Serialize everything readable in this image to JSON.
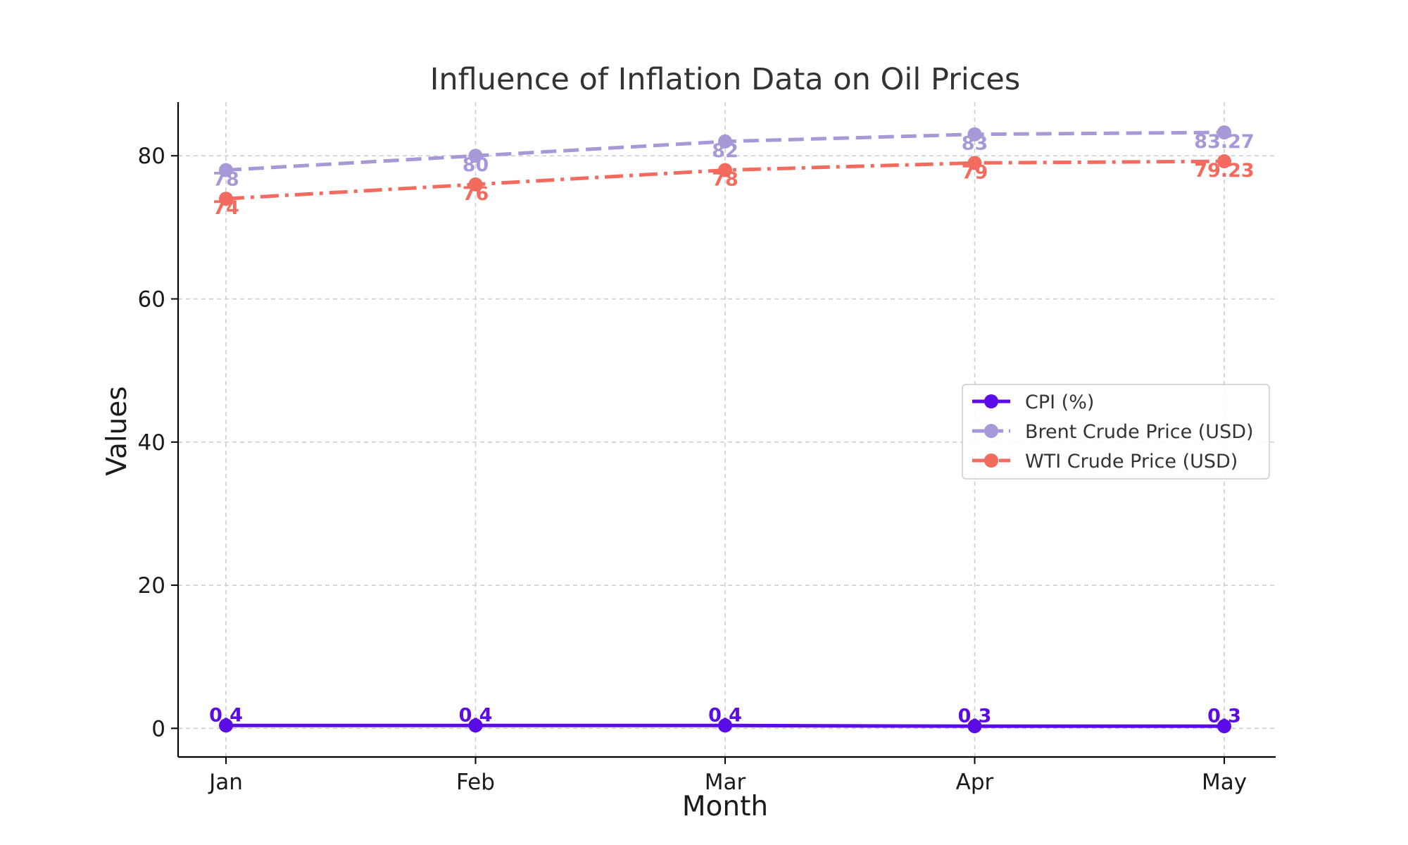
{
  "chart_data": {
    "type": "line",
    "title": "Influence of Inflation Data on Oil Prices",
    "xlabel": "Month",
    "ylabel": "Values",
    "categories": [
      "Jan",
      "Feb",
      "Mar",
      "Apr",
      "May"
    ],
    "ylim": [
      -4,
      87.5
    ],
    "yticks": [
      0,
      20,
      40,
      60,
      80
    ],
    "grid": true,
    "legend_position": "center-right",
    "series": [
      {
        "name": "CPI (%)",
        "values": [
          0.4,
          0.4,
          0.4,
          0.3,
          0.3
        ],
        "labels": [
          "0.4",
          "0.4",
          "0.4",
          "0.3",
          "0.3"
        ],
        "color": "#5b0ce6",
        "line_style": "solid"
      },
      {
        "name": "Brent Crude Price (USD)",
        "values": [
          78,
          80,
          82,
          83,
          83.27
        ],
        "labels": [
          "78",
          "80",
          "82",
          "83",
          "83.27"
        ],
        "color": "#a898d8",
        "line_style": "dashed"
      },
      {
        "name": "WTI Crude Price (USD)",
        "values": [
          74,
          76,
          78,
          79,
          79.23
        ],
        "labels": [
          "74",
          "76",
          "78",
          "79",
          "79.23"
        ],
        "color": "#f26b5e",
        "line_style": "dashdot"
      }
    ]
  }
}
